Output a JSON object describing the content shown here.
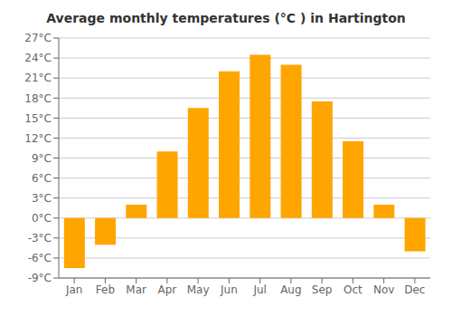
{
  "chart_data": {
    "type": "bar",
    "title": "Average monthly temperatures (°C ) in Hartington",
    "categories": [
      "Jan",
      "Feb",
      "Mar",
      "Apr",
      "May",
      "Jun",
      "Jul",
      "Aug",
      "Sep",
      "Oct",
      "Nov",
      "Dec"
    ],
    "values": [
      -7.5,
      -4.0,
      2.0,
      10.0,
      16.5,
      22.0,
      24.5,
      23.0,
      17.5,
      11.5,
      2.0,
      -5.0
    ],
    "color": "#FFA500",
    "ylim": [
      -9,
      27
    ],
    "yticks": [
      {
        "value": -9,
        "label": "-9°C"
      },
      {
        "value": -6,
        "label": "-6°C"
      },
      {
        "value": -3,
        "label": "-3°C"
      },
      {
        "value": 0,
        "label": "0°C"
      },
      {
        "value": 3,
        "label": "3°C"
      },
      {
        "value": 6,
        "label": "6°C"
      },
      {
        "value": 9,
        "label": "9°C"
      },
      {
        "value": 12,
        "label": "12°C"
      },
      {
        "value": 15,
        "label": "15°C"
      },
      {
        "value": 18,
        "label": "18°C"
      },
      {
        "value": 21,
        "label": "21°C"
      },
      {
        "value": 24,
        "label": "24°C"
      },
      {
        "value": 27,
        "label": "27°C"
      }
    ],
    "grid": true
  }
}
